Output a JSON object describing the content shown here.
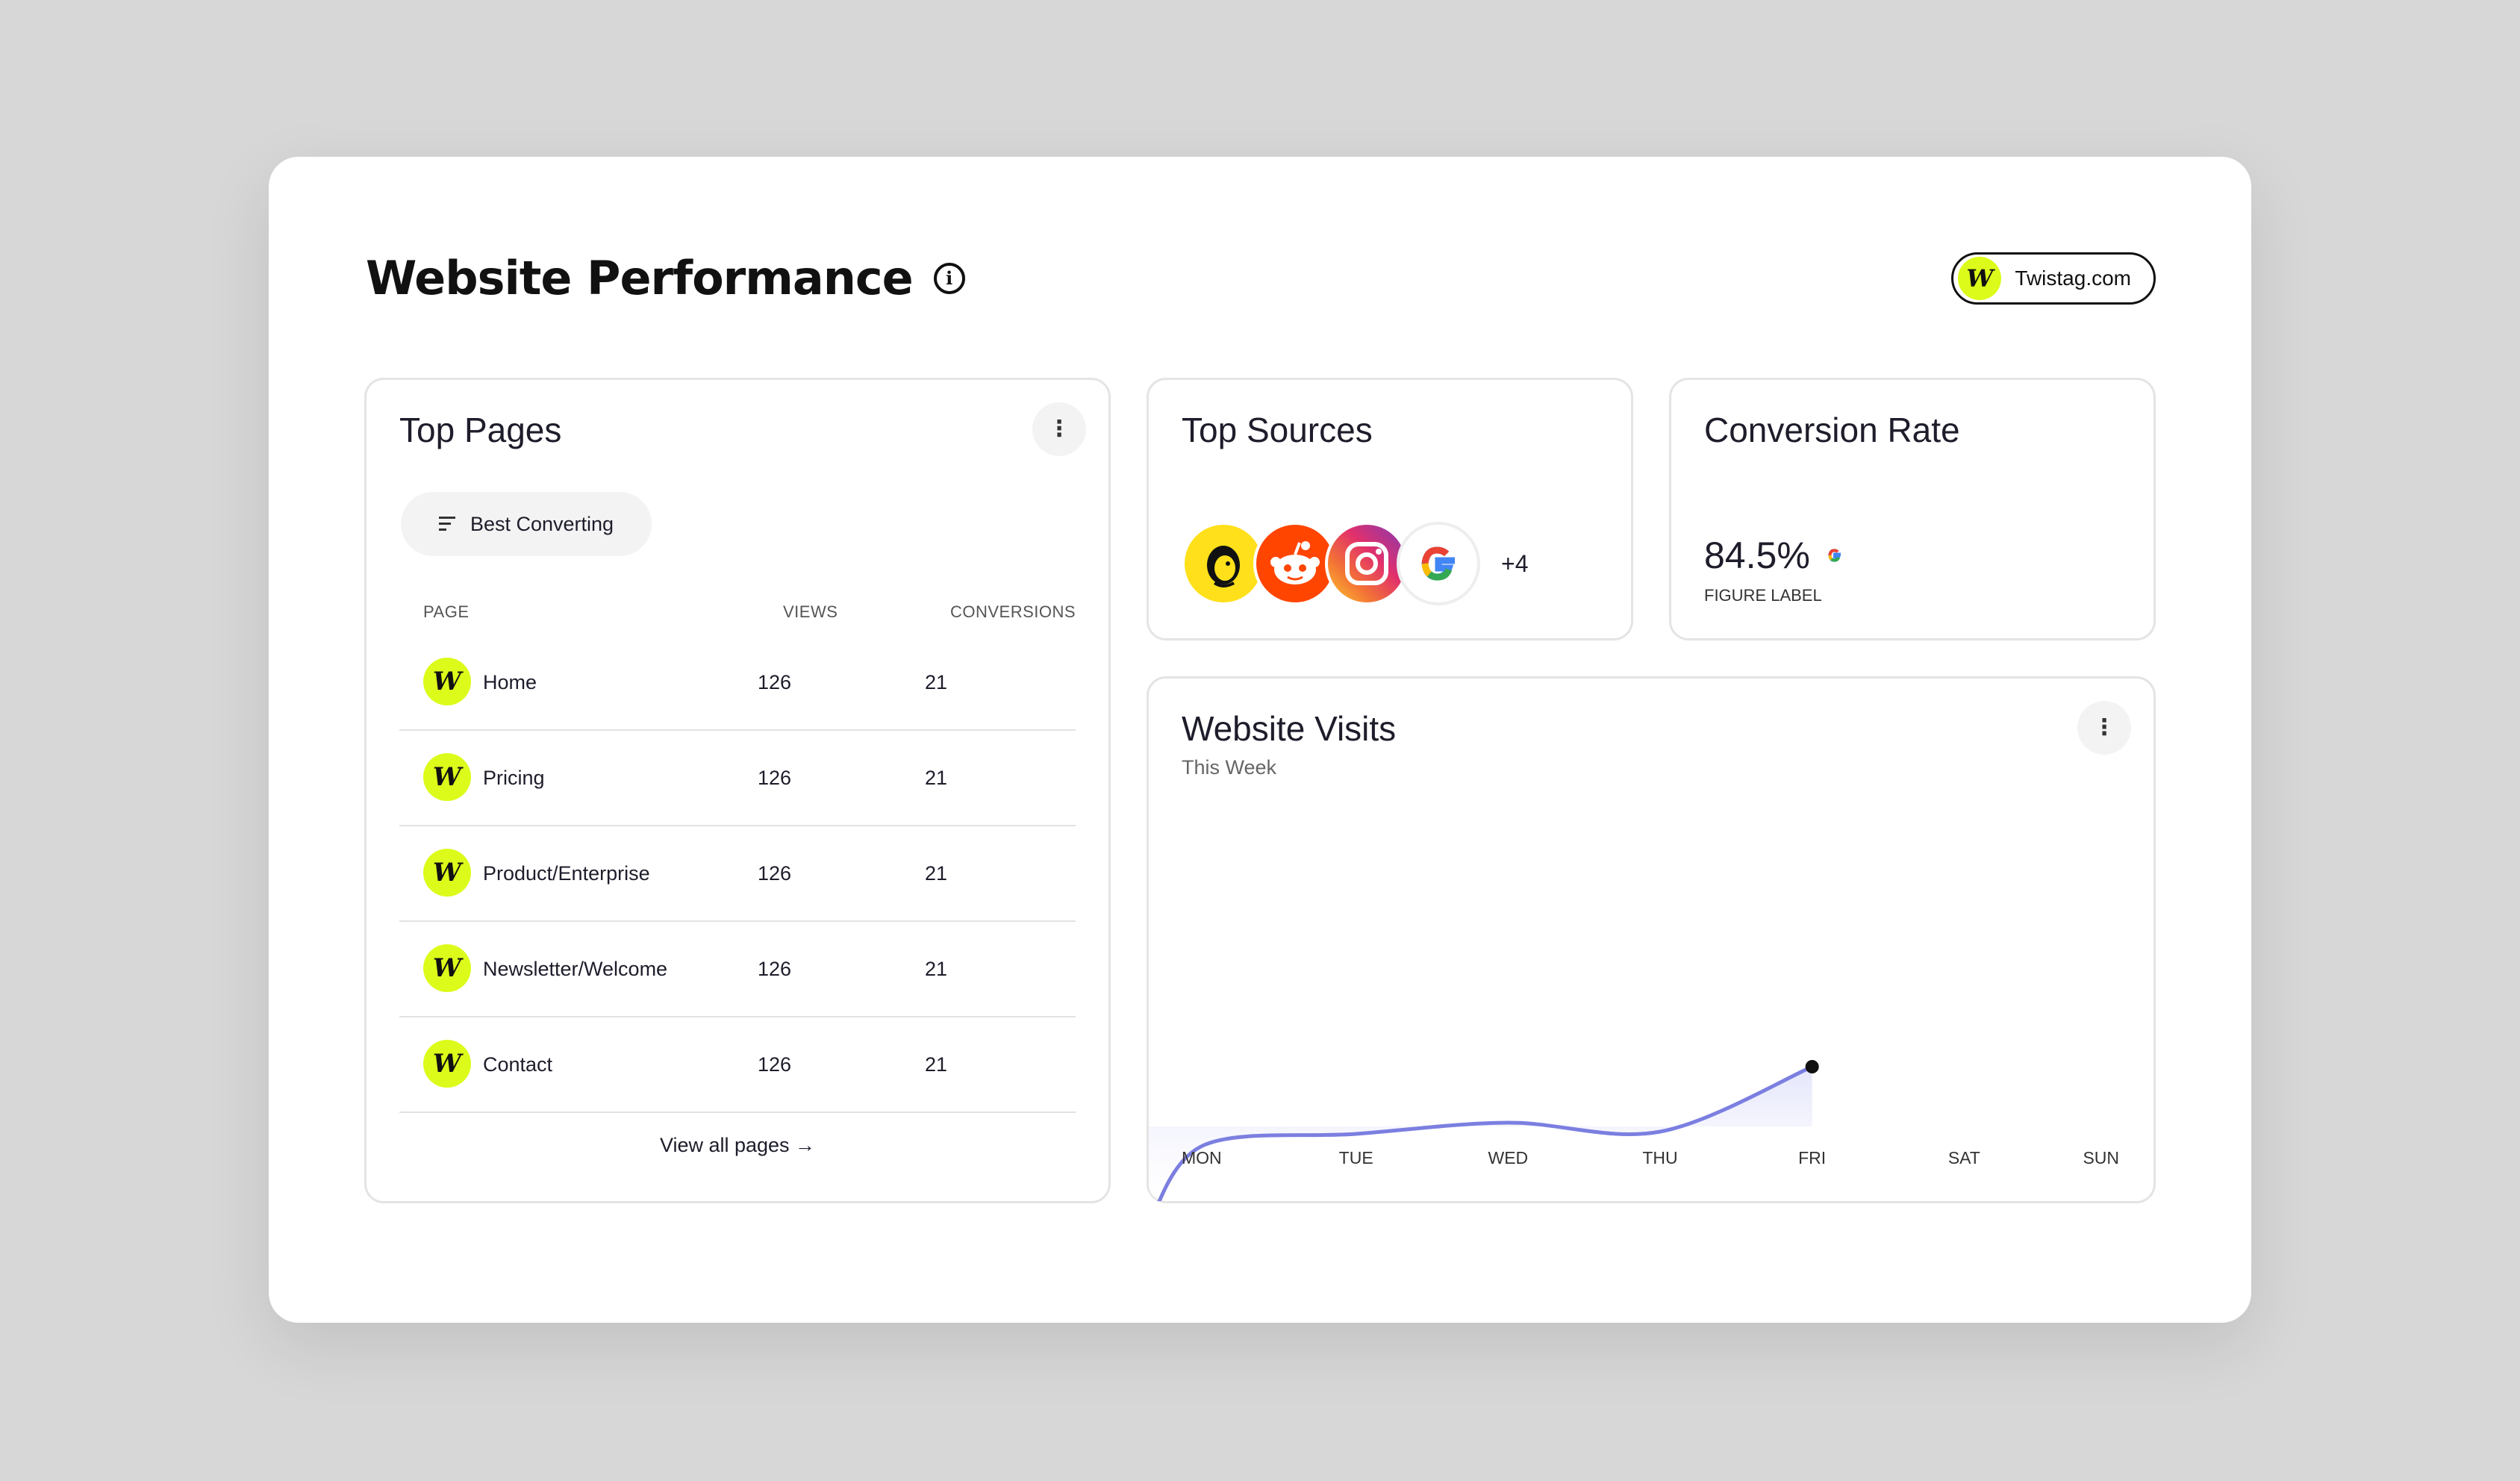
{
  "header": {
    "title": "Website Performance",
    "brand": {
      "logo_letter": "W",
      "label": "Twistag.com"
    }
  },
  "top_pages": {
    "title": "Top Pages",
    "sort_label": "Best Converting",
    "columns": {
      "page": "PAGE",
      "views": "VIEWS",
      "conversions": "CONVERSIONS"
    },
    "rows": [
      {
        "page": "Home",
        "views": "126",
        "conversions": "21"
      },
      {
        "page": "Pricing",
        "views": "126",
        "conversions": "21"
      },
      {
        "page": "Product/Enterprise",
        "views": "126",
        "conversions": "21"
      },
      {
        "page": "Newsletter/Welcome",
        "views": "126",
        "conversions": "21"
      },
      {
        "page": "Contact",
        "views": "126",
        "conversions": "21"
      }
    ],
    "view_all": "View all pages →"
  },
  "top_sources": {
    "title": "Top Sources",
    "sources": [
      "mailchimp-icon",
      "reddit-icon",
      "instagram-icon",
      "google-icon"
    ],
    "more": "+4"
  },
  "conversion": {
    "title": "Conversion Rate",
    "value": "84.5%",
    "label": "FIGURE LABEL"
  },
  "visits": {
    "title": "Website Visits",
    "subtitle": "This Week"
  },
  "chart_data": {
    "type": "line",
    "categories": [
      "MON",
      "TUE",
      "WED",
      "THU",
      "FRI",
      "SAT",
      "SUN"
    ],
    "series": [
      {
        "values": [
          45,
          50,
          55,
          51,
          80,
          null,
          null
        ]
      }
    ],
    "ylim": [
      0,
      100
    ],
    "grid": false,
    "colors": {
      "line": "#7b7fe0",
      "fill": "#e7e8fb",
      "point": "#111111"
    }
  },
  "colors": {
    "brand_lime": "#dcfb1a",
    "text": "#1d1d2b",
    "border": "#e4e4e4",
    "background": "#d7d7d7"
  }
}
